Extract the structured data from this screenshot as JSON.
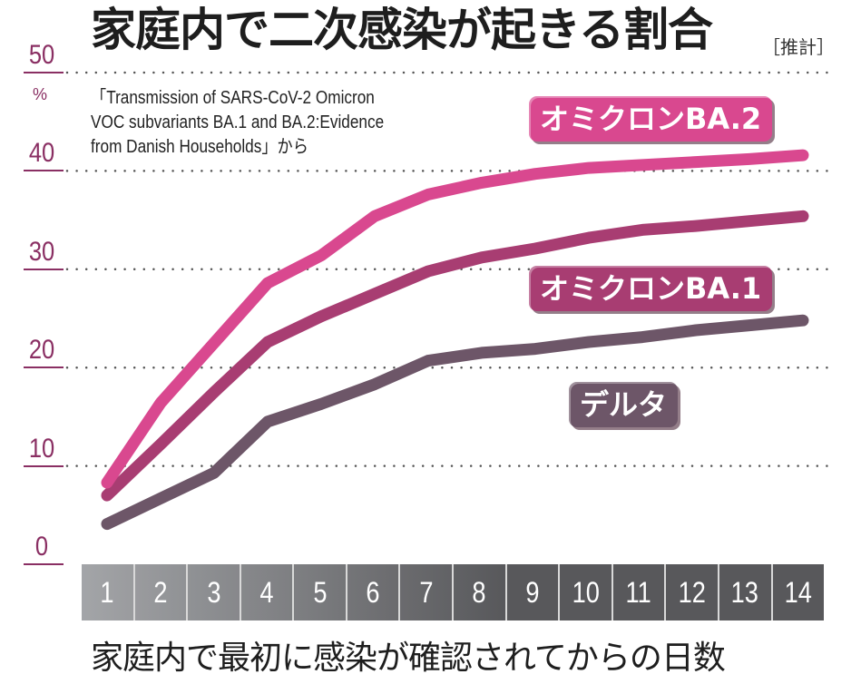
{
  "header": {
    "title": "家庭内で二次感染が起きる割合",
    "title_note": "［推計］"
  },
  "source_note": {
    "lines": [
      "「Transmission of SARS-CoV-2 Omicron",
      "VOC subvariants BA.1 and BA.2:Evidence",
      "from Danish Households」から"
    ]
  },
  "y_axis": {
    "unit": "%",
    "ticks": [
      "50",
      "40",
      "30",
      "20",
      "10",
      "0"
    ]
  },
  "x_axis": {
    "label": "家庭内で最初に感染が確認されてからの日数",
    "days": [
      "1",
      "2",
      "3",
      "4",
      "5",
      "6",
      "7",
      "8",
      "9",
      "10",
      "11",
      "12",
      "13",
      "14"
    ]
  },
  "legend": {
    "ba2": "オミクロンBA.2",
    "ba1": "オミクロンBA.1",
    "delta": "デルタ"
  },
  "colors": {
    "ba2": "#d9488f",
    "ba1": "#a83d72",
    "delta": "#6d5668",
    "axis_text": "#8a2f63",
    "grid_dots": "#555555",
    "xaxis_start": "#a3a5a8",
    "xaxis_end": "#58585b"
  },
  "chart_data": {
    "type": "line",
    "title": "家庭内で二次感染が起きる割合［推計］",
    "subtitle": "「Transmission of SARS-CoV-2 Omicron VOC subvariants BA.1 and BA.2:Evidence from Danish Households」から",
    "xlabel": "家庭内で最初に感染が確認されてからの日数",
    "ylabel": "%",
    "x": [
      1,
      2,
      3,
      4,
      5,
      6,
      7,
      8,
      9,
      10,
      11,
      12,
      13,
      14
    ],
    "ylim": [
      0,
      50
    ],
    "yticks": [
      0,
      10,
      20,
      30,
      40,
      50
    ],
    "grid": "horizontal dotted",
    "series": [
      {
        "name": "オミクロンBA.2",
        "values": [
          8.3,
          16.4,
          22.5,
          28.6,
          31.4,
          35.4,
          37.6,
          38.8,
          39.7,
          40.3,
          40.6,
          40.9,
          41.2,
          41.6
        ]
      },
      {
        "name": "オミクロンBA.1",
        "values": [
          7.0,
          12.2,
          17.5,
          22.6,
          25.2,
          27.5,
          29.8,
          31.2,
          32.1,
          33.2,
          34.0,
          34.4,
          34.9,
          35.4
        ]
      },
      {
        "name": "デルタ",
        "values": [
          4.1,
          6.7,
          9.3,
          14.5,
          16.3,
          18.3,
          20.7,
          21.5,
          21.9,
          22.6,
          23.1,
          23.8,
          24.3,
          24.8
        ]
      }
    ],
    "legend_position": "inline labels near lines"
  }
}
